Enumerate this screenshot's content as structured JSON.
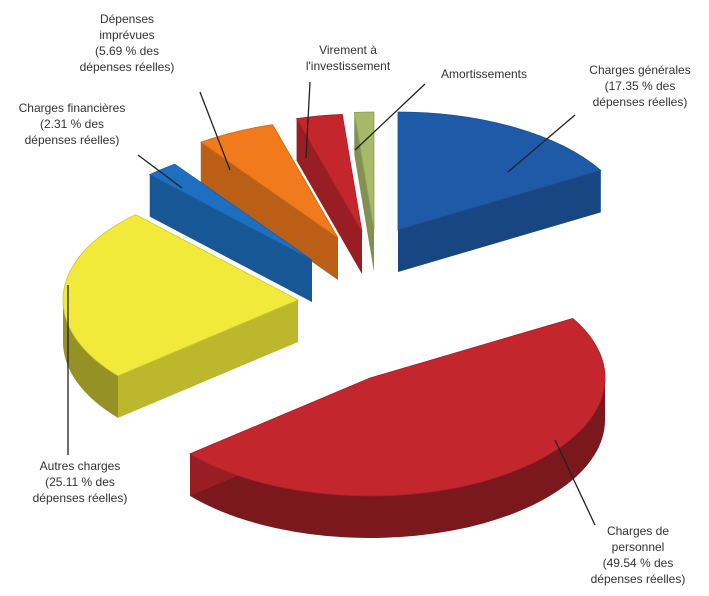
{
  "chart_data": {
    "type": "pie",
    "title": "",
    "legend": "none",
    "unit": "% des dépenses réelles",
    "slices": [
      {
        "name": "Charges générales",
        "value": 17.35,
        "color": "#1e5aa8",
        "label_lines": [
          "Charges  générales",
          "(17.35  % des",
          "dépenses réelles)"
        ]
      },
      {
        "name": "Charges de personnel",
        "value": 49.54,
        "color": "#c4262e",
        "label_lines": [
          "Charges de",
          "personnel",
          "(49.54 % des",
          "dépenses réelles)"
        ]
      },
      {
        "name": "Autres charges",
        "value": 25.11,
        "color": "#f2ea3a",
        "label_lines": [
          "Autres charges",
          "(25.11 % des",
          "dépenses réelles)"
        ]
      },
      {
        "name": "Charges financières",
        "value": 2.31,
        "color": "#1f6fc0",
        "label_lines": [
          "Charges financières",
          "(2.31 % des",
          "dépenses réelles)"
        ]
      },
      {
        "name": "Dépenses imprévues",
        "value": 5.69,
        "color": "#f07a1c",
        "label_lines": [
          "Dépenses",
          "imprévues",
          "(5.69 % des",
          "dépenses réelles)"
        ]
      },
      {
        "name": "Virement à l'investissement",
        "value": 3.3,
        "color": "#c4262e",
        "label_lines": [
          "Virement à",
          "l'investissement"
        ]
      },
      {
        "name": "Amortissements",
        "value": 1.4,
        "color": "#a7b968",
        "label_lines": [
          "Amortissements"
        ]
      }
    ]
  }
}
